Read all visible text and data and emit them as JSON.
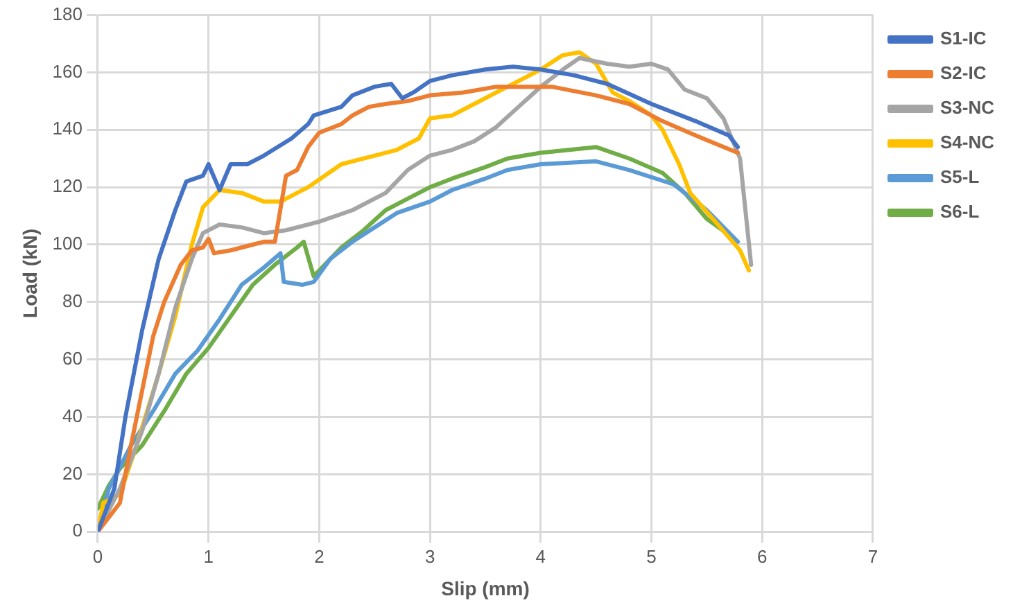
{
  "chart_data": {
    "type": "line",
    "xlabel": "Slip (mm)",
    "ylabel": "Load (kN)",
    "xlim": [
      0,
      7
    ],
    "xticks": [
      0,
      1,
      2,
      3,
      4,
      5,
      6,
      7
    ],
    "ylim": [
      0,
      180
    ],
    "yticks": [
      0,
      20,
      40,
      60,
      80,
      100,
      120,
      140,
      160,
      180
    ],
    "grid": true,
    "legend": "right",
    "marker": "none",
    "line_style": "solid",
    "series": [
      {
        "name": "S1-IC",
        "color": "#4472c4",
        "x": [
          0,
          0.15,
          0.25,
          0.4,
          0.55,
          0.7,
          0.8,
          0.95,
          1.0,
          1.1,
          1.2,
          1.35,
          1.5,
          1.75,
          1.9,
          1.95,
          2.2,
          2.3,
          2.5,
          2.65,
          2.75,
          2.85,
          3.0,
          3.2,
          3.5,
          3.75,
          4.0,
          4.3,
          4.6,
          5.0,
          5.4,
          5.7,
          5.78
        ],
        "values": [
          0,
          15,
          40,
          70,
          95,
          112,
          122,
          124,
          128,
          119,
          128,
          128,
          131,
          137,
          142,
          145,
          148,
          152,
          155,
          156,
          151,
          153,
          157,
          159,
          161,
          162,
          161,
          159,
          156,
          149,
          143,
          138,
          134
        ]
      },
      {
        "name": "S2-IC",
        "color": "#ed7d31",
        "x": [
          0,
          0.2,
          0.3,
          0.5,
          0.6,
          0.75,
          0.85,
          0.95,
          1.0,
          1.05,
          1.2,
          1.4,
          1.5,
          1.6,
          1.7,
          1.8,
          1.9,
          2.0,
          2.2,
          2.3,
          2.45,
          2.6,
          2.8,
          3.0,
          3.3,
          3.6,
          3.8,
          4.1,
          4.5,
          4.8,
          5.1,
          5.4,
          5.78
        ],
        "values": [
          0,
          10,
          30,
          68,
          80,
          93,
          98,
          99,
          102,
          97,
          98,
          100,
          101,
          101,
          124,
          126,
          134,
          139,
          142,
          145,
          148,
          149,
          150,
          152,
          153,
          155,
          155,
          155,
          152,
          149,
          143,
          138,
          132
        ]
      },
      {
        "name": "S3-NC",
        "color": "#a5a5a5",
        "x": [
          0,
          0.2,
          0.4,
          0.55,
          0.7,
          0.85,
          0.95,
          1.1,
          1.3,
          1.5,
          1.7,
          2.0,
          2.3,
          2.6,
          2.8,
          3.0,
          3.2,
          3.4,
          3.6,
          3.8,
          4.0,
          4.2,
          4.35,
          4.6,
          4.8,
          5.0,
          5.15,
          5.3,
          5.5,
          5.65,
          5.8,
          5.9
        ],
        "values": [
          0,
          15,
          35,
          55,
          78,
          95,
          104,
          107,
          106,
          104,
          105,
          108,
          112,
          118,
          126,
          131,
          133,
          136,
          141,
          148,
          155,
          161,
          165,
          163,
          162,
          163,
          161,
          154,
          151,
          144,
          130,
          93
        ]
      },
      {
        "name": "S4-NC",
        "color": "#ffc000",
        "x": [
          0,
          0.05,
          0.2,
          0.35,
          0.55,
          0.7,
          0.85,
          0.95,
          1.1,
          1.3,
          1.5,
          1.65,
          1.9,
          2.2,
          2.5,
          2.7,
          2.9,
          3.0,
          3.2,
          3.4,
          3.6,
          3.8,
          4.0,
          4.2,
          4.35,
          4.5,
          4.65,
          4.8,
          5.0,
          5.1,
          5.25,
          5.35,
          5.6,
          5.8,
          5.88
        ],
        "values": [
          0,
          10,
          13,
          30,
          55,
          75,
          100,
          113,
          119,
          118,
          115,
          115,
          120,
          128,
          131,
          133,
          137,
          144,
          145,
          149,
          153,
          157,
          161,
          166,
          167,
          163,
          153,
          150,
          145,
          140,
          128,
          118,
          107,
          98,
          91
        ]
      },
      {
        "name": "S5-L",
        "color": "#5b9bd5",
        "x": [
          0,
          0.1,
          0.3,
          0.5,
          0.7,
          0.9,
          1.1,
          1.3,
          1.5,
          1.65,
          1.68,
          1.85,
          1.95,
          2.1,
          2.3,
          2.5,
          2.7,
          3.0,
          3.2,
          3.5,
          3.7,
          4.0,
          4.5,
          4.8,
          5.2,
          5.5,
          5.78
        ],
        "values": [
          0,
          15,
          30,
          42,
          55,
          63,
          74,
          86,
          92,
          97,
          87,
          86,
          87,
          95,
          101,
          106,
          111,
          115,
          119,
          123,
          126,
          128,
          129,
          126,
          121,
          112,
          101
        ]
      },
      {
        "name": "S6-L",
        "color": "#70ad47",
        "x": [
          0,
          0.1,
          0.2,
          0.4,
          0.6,
          0.8,
          1.0,
          1.2,
          1.4,
          1.6,
          1.8,
          1.86,
          1.95,
          2.0,
          2.2,
          2.4,
          2.6,
          2.8,
          3.0,
          3.2,
          3.5,
          3.7,
          4.0,
          4.5,
          4.8,
          5.1,
          5.3,
          5.5,
          5.75
        ],
        "values": [
          8,
          16,
          22,
          30,
          42,
          55,
          64,
          75,
          86,
          93,
          99,
          101,
          89,
          91,
          99,
          105,
          112,
          116,
          120,
          123,
          127,
          130,
          132,
          134,
          130,
          125,
          118,
          109,
          102
        ]
      }
    ]
  }
}
